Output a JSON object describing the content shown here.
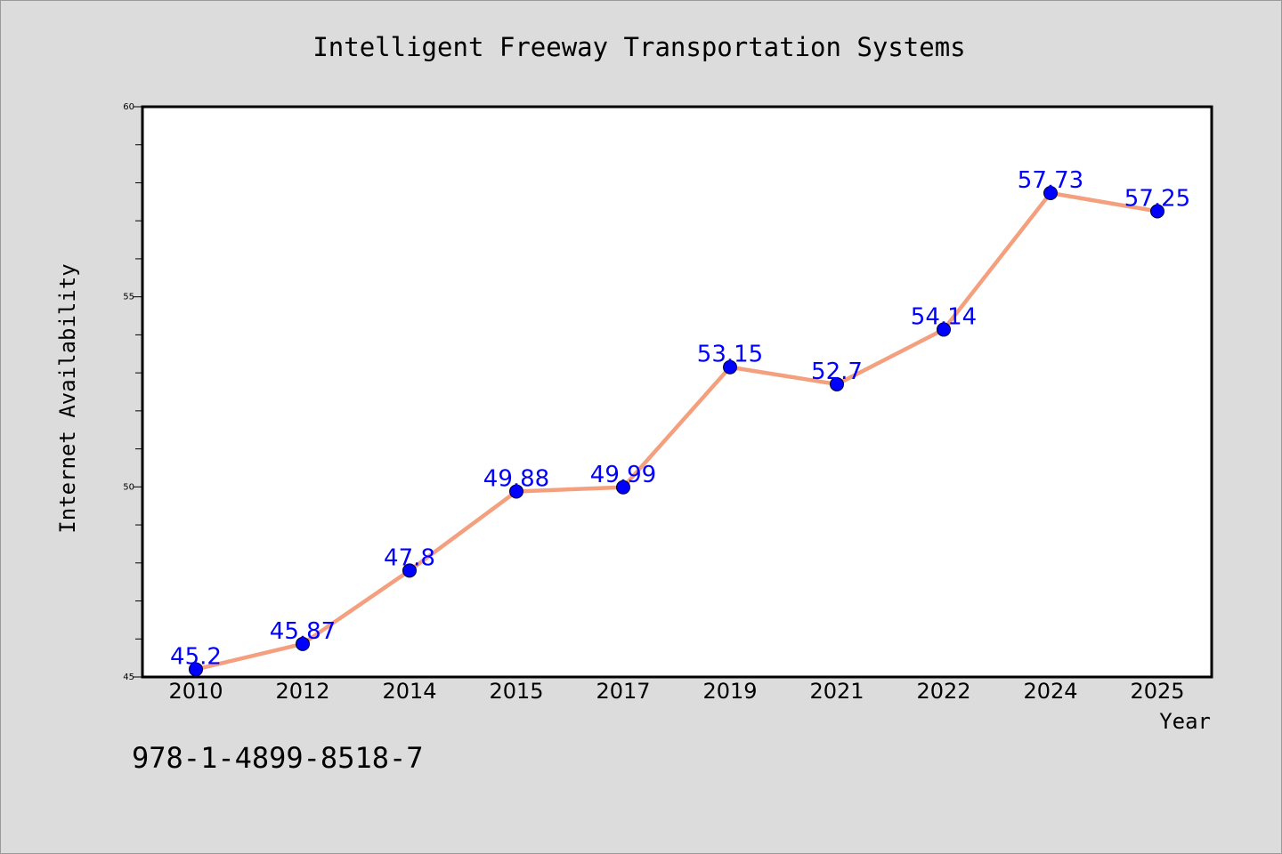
{
  "chart_data": {
    "type": "line",
    "title": "Intelligent Freeway Transportation Systems",
    "xlabel": "Year",
    "ylabel": "Internet Availability",
    "categories": [
      "2010",
      "2012",
      "2014",
      "2015",
      "2017",
      "2019",
      "2021",
      "2022",
      "2024",
      "2025"
    ],
    "series": [
      {
        "values": [
          45.2,
          45.87,
          47.8,
          49.88,
          49.99,
          53.15,
          52.7,
          54.14,
          57.73,
          57.25
        ],
        "data_labels": [
          "45.2",
          "45.87",
          "47.8",
          "49.88",
          "49.99",
          "53.15",
          "52.7",
          "54.14",
          "57.73",
          "57.25"
        ],
        "line_color": "#f4a07e",
        "marker_color": "#0000ff"
      }
    ],
    "ylim": [
      45,
      60
    ],
    "yticks": [
      45,
      50,
      55,
      60
    ],
    "ytick_labels": [
      "45",
      "50",
      "55",
      "60"
    ],
    "grid": false,
    "legend": "none",
    "annotation": "978-1-4899-8518-7",
    "background_color": "#dcdcdc",
    "plot_background_color": "#ffffff"
  }
}
